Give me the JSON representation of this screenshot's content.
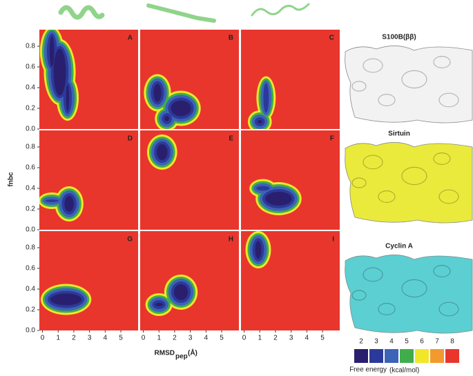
{
  "chart_data": {
    "type": "contour",
    "panels": [
      {
        "label": "A"
      },
      {
        "label": "B"
      },
      {
        "label": "C"
      },
      {
        "label": "D"
      },
      {
        "label": "E"
      },
      {
        "label": "F"
      },
      {
        "label": "G"
      },
      {
        "label": "H"
      },
      {
        "label": "I"
      }
    ],
    "xlabel": "RMSD",
    "xlabel_sub": "pep",
    "xlabel_unit": "(Å)",
    "ylabel": "fnbc",
    "xlim": [
      -0.2,
      6.1
    ],
    "xticks": [
      0,
      1,
      2,
      3,
      4,
      5
    ],
    "ylim": [
      0,
      0.96
    ],
    "yticks": [
      {
        "value": 0,
        "label": "0.0"
      },
      {
        "value": 0.2,
        "label": "0.2"
      },
      {
        "value": 0.4,
        "label": "0.4"
      },
      {
        "value": 0.6,
        "label": "0.6"
      },
      {
        "value": 0.8,
        "label": "0.8"
      }
    ],
    "background_color": "#e8362d",
    "colorbar": {
      "title": "Free energy",
      "unit": "(kcal/mol)",
      "values": [
        2,
        3,
        4,
        5,
        6,
        7,
        8
      ],
      "colors": [
        "#2a1f6e",
        "#2b3a9a",
        "#3d63b8",
        "#3fae4a",
        "#f2e62a",
        "#f29a2e",
        "#e8362d"
      ]
    },
    "proteins": [
      {
        "name": "S100B(ββ)",
        "color": "#f2f2f2"
      },
      {
        "name": "Sirtuin",
        "color": "#eaea3c"
      },
      {
        "name": "Cyclin A",
        "color": "#5ccfd2"
      }
    ]
  }
}
